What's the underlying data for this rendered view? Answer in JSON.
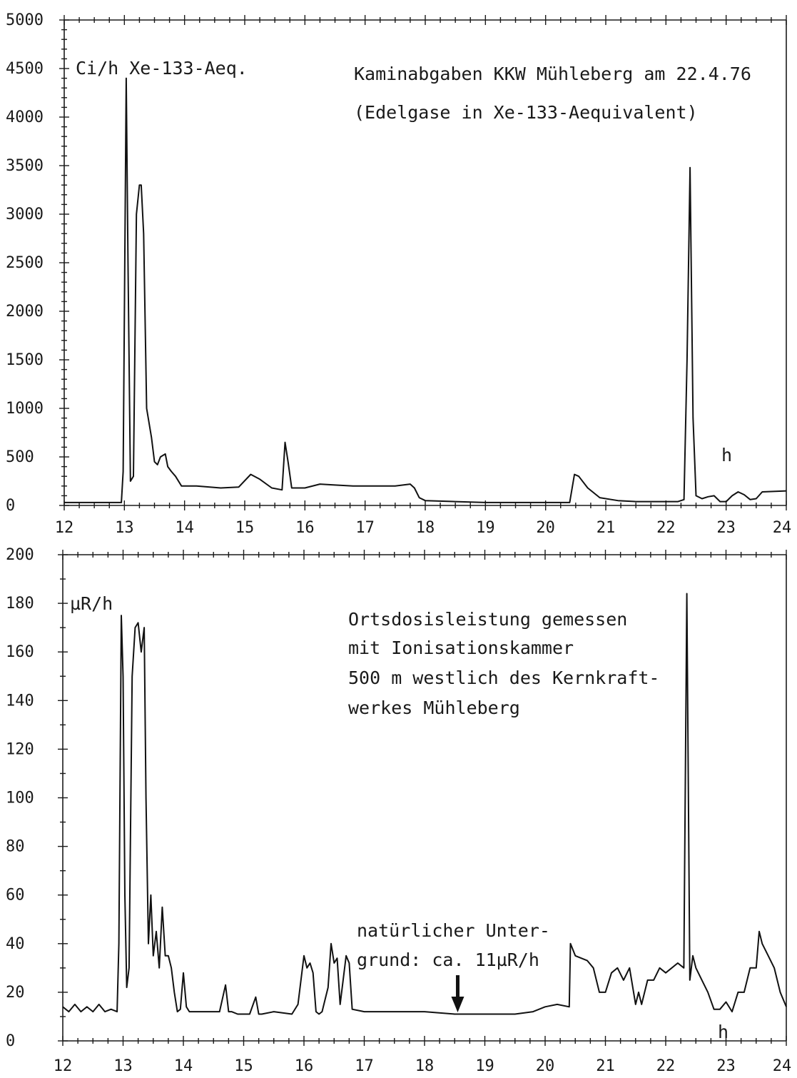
{
  "chart_data": [
    {
      "type": "line",
      "id": "top",
      "xlim": [
        12,
        24
      ],
      "ylim": [
        0,
        5000
      ],
      "xticks": [
        "12",
        "13",
        "14",
        "15",
        "16",
        "17",
        "18",
        "19",
        "20",
        "21",
        "22",
        "23",
        "24"
      ],
      "yticks": [
        "0",
        "500",
        "1000",
        "1500",
        "2000",
        "2500",
        "3000",
        "3500",
        "4000",
        "4500",
        "5000"
      ],
      "unit_label": "Ci/h Xe-133-Aeq.",
      "x_unit": "h",
      "annotations": [
        "Kaminabgaben KKW Mühleberg am 22.4.76",
        "(Edelgase in Xe-133-Aequivalent)"
      ],
      "series": [
        {
          "x": [
            12.0,
            12.95,
            12.98,
            13.03,
            13.06,
            13.1,
            13.15,
            13.2,
            13.25,
            13.28,
            13.32,
            13.37,
            13.45,
            13.5,
            13.55,
            13.6,
            13.68,
            13.72,
            13.78,
            13.85,
            13.95,
            14.2,
            14.6,
            14.9,
            15.1,
            15.25,
            15.45,
            15.62,
            15.67,
            15.72,
            15.78,
            15.9,
            16.0,
            16.25,
            16.5,
            16.8,
            17.5,
            17.75,
            17.82,
            17.9,
            18.0,
            18.5,
            19.0,
            19.5,
            19.8,
            20.1,
            20.4,
            20.48,
            20.55,
            20.7,
            20.9,
            21.2,
            21.5,
            21.8,
            22.2,
            22.3,
            22.35,
            22.4,
            22.45,
            22.5,
            22.6,
            22.7,
            22.8,
            22.9,
            23.0,
            23.1,
            23.2,
            23.3,
            23.4,
            23.5,
            23.6,
            24.0
          ],
          "values": [
            30,
            30,
            350,
            4400,
            2500,
            250,
            300,
            3000,
            3300,
            3300,
            2800,
            1000,
            700,
            450,
            420,
            500,
            530,
            400,
            350,
            300,
            200,
            200,
            180,
            190,
            320,
            270,
            180,
            160,
            650,
            450,
            180,
            180,
            180,
            220,
            210,
            200,
            200,
            220,
            180,
            80,
            50,
            40,
            30,
            30,
            30,
            30,
            30,
            320,
            300,
            180,
            80,
            50,
            40,
            40,
            40,
            60,
            1500,
            3480,
            900,
            100,
            70,
            90,
            100,
            40,
            40,
            100,
            140,
            110,
            60,
            70,
            140,
            150
          ]
        }
      ]
    },
    {
      "type": "line",
      "id": "bottom",
      "xlim": [
        12,
        24
      ],
      "ylim": [
        0,
        200
      ],
      "xticks": [
        "12",
        "13",
        "14",
        "15",
        "16",
        "17",
        "18",
        "19",
        "20",
        "21",
        "22",
        "23",
        "24"
      ],
      "yticks": [
        "0",
        "20",
        "40",
        "60",
        "80",
        "100",
        "120",
        "140",
        "160",
        "180",
        "200"
      ],
      "unit_label": "µR/h",
      "x_unit": "h",
      "annotations": [
        "Ortsdosisleistung gemessen",
        "mit Ionisationskammer",
        "500 m westlich des Kernkraft-",
        "werkes Mühleberg"
      ],
      "background_note": [
        "natürlicher Unter-",
        "grund: ca. 11µR/h"
      ],
      "arrow_at_x": 18.55,
      "series": [
        {
          "x": [
            12.0,
            12.1,
            12.2,
            12.3,
            12.4,
            12.5,
            12.6,
            12.7,
            12.8,
            12.9,
            12.93,
            12.97,
            13.0,
            13.03,
            13.06,
            13.1,
            13.15,
            13.2,
            13.25,
            13.3,
            13.35,
            13.38,
            13.42,
            13.46,
            13.5,
            13.55,
            13.6,
            13.65,
            13.7,
            13.75,
            13.8,
            13.85,
            13.9,
            13.95,
            14.0,
            14.05,
            14.1,
            14.3,
            14.6,
            14.7,
            14.75,
            14.8,
            14.9,
            15.1,
            15.2,
            15.25,
            15.3,
            15.5,
            15.8,
            15.9,
            16.0,
            16.05,
            16.1,
            16.15,
            16.2,
            16.25,
            16.3,
            16.4,
            16.45,
            16.5,
            16.55,
            16.6,
            16.65,
            16.7,
            16.75,
            16.8,
            17.0,
            17.5,
            17.8,
            18.0,
            18.5,
            19.0,
            19.5,
            19.8,
            20.0,
            20.2,
            20.4,
            20.42,
            20.5,
            20.6,
            20.7,
            20.8,
            20.9,
            21.0,
            21.1,
            21.2,
            21.3,
            21.4,
            21.5,
            21.55,
            21.6,
            21.7,
            21.8,
            21.9,
            22.0,
            22.1,
            22.2,
            22.3,
            22.35,
            22.4,
            22.45,
            22.5,
            22.6,
            22.7,
            22.8,
            22.9,
            23.0,
            23.1,
            23.2,
            23.3,
            23.4,
            23.5,
            23.55,
            23.6,
            23.7,
            23.8,
            23.9,
            24.0
          ],
          "values": [
            14,
            12,
            15,
            12,
            14,
            12,
            15,
            12,
            13,
            12,
            40,
            175,
            150,
            60,
            22,
            30,
            150,
            170,
            172,
            160,
            170,
            100,
            40,
            60,
            35,
            45,
            30,
            55,
            35,
            35,
            30,
            20,
            12,
            13,
            28,
            14,
            12,
            12,
            12,
            23,
            12,
            12,
            11,
            11,
            18,
            11,
            11,
            12,
            11,
            15,
            35,
            30,
            32,
            28,
            12,
            11,
            12,
            22,
            40,
            32,
            34,
            15,
            25,
            35,
            32,
            13,
            12,
            12,
            12,
            12,
            11,
            11,
            11,
            12,
            14,
            15,
            14,
            40,
            35,
            34,
            33,
            30,
            20,
            20,
            28,
            30,
            25,
            30,
            15,
            20,
            15,
            25,
            25,
            30,
            28,
            30,
            32,
            30,
            184,
            25,
            35,
            30,
            25,
            20,
            13,
            13,
            16,
            12,
            20,
            20,
            30,
            30,
            45,
            40,
            35,
            30,
            20,
            14
          ]
        }
      ]
    }
  ]
}
